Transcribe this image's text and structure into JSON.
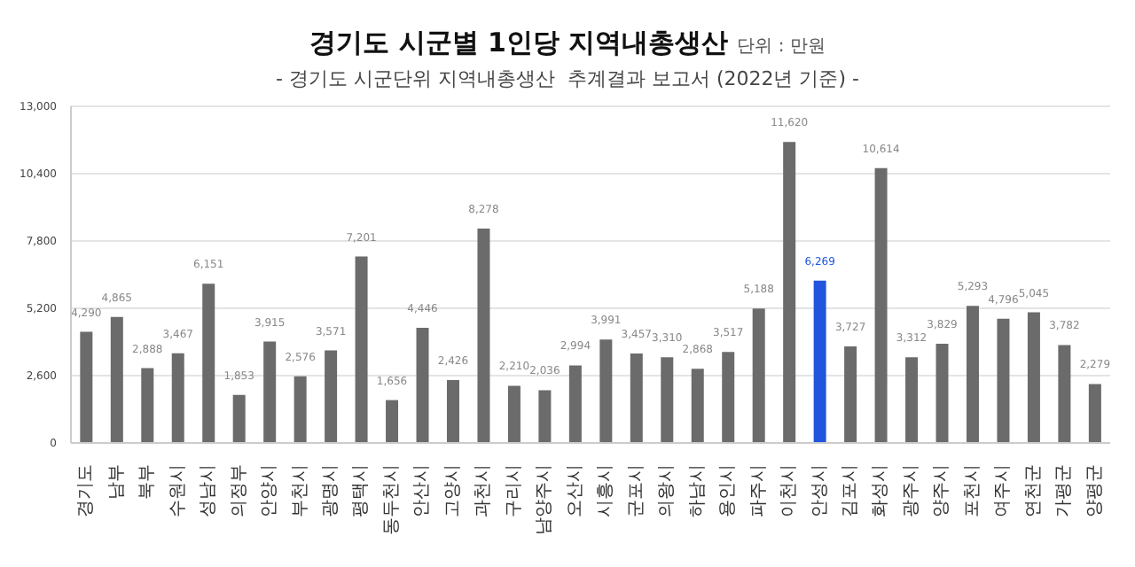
{
  "chart_data": {
    "type": "bar",
    "title": "경기도 시군별 1인당 지역내총생산",
    "subtitle": "- 경기도 시군단위 지역내총생산  추계결과 보고서 (2022년 기준) -",
    "annotations": [
      "단위 : 만원"
    ],
    "categories": [
      "경기도",
      "남부",
      "북부",
      "수원시",
      "성남시",
      "의정부",
      "안양시",
      "부천시",
      "광명시",
      "평택시",
      "동두천시",
      "안산시",
      "고양시",
      "과천시",
      "구리시",
      "남양주시",
      "오산시",
      "시흥시",
      "군포시",
      "의왕시",
      "하남시",
      "용인시",
      "파주시",
      "이천시",
      "안성시",
      "김포시",
      "화성시",
      "광주시",
      "양주시",
      "포천시",
      "여주시",
      "연천군",
      "가평군",
      "양평군"
    ],
    "values": [
      4290,
      4865,
      2888,
      3467,
      6151,
      1853,
      3915,
      2576,
      3571,
      7201,
      1656,
      4446,
      2426,
      8278,
      2210,
      2036,
      2994,
      3991,
      3457,
      3310,
      2868,
      3517,
      5188,
      11620,
      6269,
      3727,
      10614,
      3312,
      3829,
      5293,
      4796,
      5045,
      3782,
      2279
    ],
    "value_labels": [
      "4,290",
      "4,865",
      "2,888",
      "3,467",
      "6,151",
      "1,853",
      "3,915",
      "2,576",
      "3,571",
      "7,201",
      "1,656",
      "4,446",
      "2,426",
      "8,278",
      "2,210",
      "2,036",
      "2,994",
      "3,991",
      "3,457",
      "3,310",
      "2,868",
      "3,517",
      "5,188",
      "11,620",
      "6,269",
      "3,727",
      "10,614",
      "3,312",
      "3,829",
      "5,293",
      "4,796",
      "5,045",
      "3,782",
      "2,279"
    ],
    "colors": [
      "#6b6b6b",
      "#6b6b6b",
      "#6b6b6b",
      "#6b6b6b",
      "#6b6b6b",
      "#6b6b6b",
      "#6b6b6b",
      "#6b6b6b",
      "#6b6b6b",
      "#6b6b6b",
      "#6b6b6b",
      "#6b6b6b",
      "#6b6b6b",
      "#6b6b6b",
      "#6b6b6b",
      "#6b6b6b",
      "#6b6b6b",
      "#6b6b6b",
      "#6b6b6b",
      "#6b6b6b",
      "#6b6b6b",
      "#6b6b6b",
      "#6b6b6b",
      "#6b6b6b",
      "#2255dd",
      "#6b6b6b",
      "#6b6b6b",
      "#6b6b6b",
      "#6b6b6b",
      "#6b6b6b",
      "#6b6b6b",
      "#6b6b6b",
      "#6b6b6b",
      "#6b6b6b"
    ],
    "ylim": [
      0,
      13000
    ],
    "yticks": [
      0,
      {
        "value": 2600,
        "label": "2,600"
      },
      {
        "value": 5200,
        "label": "5,200"
      },
      {
        "value": 7800,
        "label": "7,800"
      },
      {
        "value": 10400,
        "label": "10,400"
      },
      {
        "value": 13000,
        "label": "13,000"
      }
    ],
    "grid": "y",
    "legend": false
  }
}
